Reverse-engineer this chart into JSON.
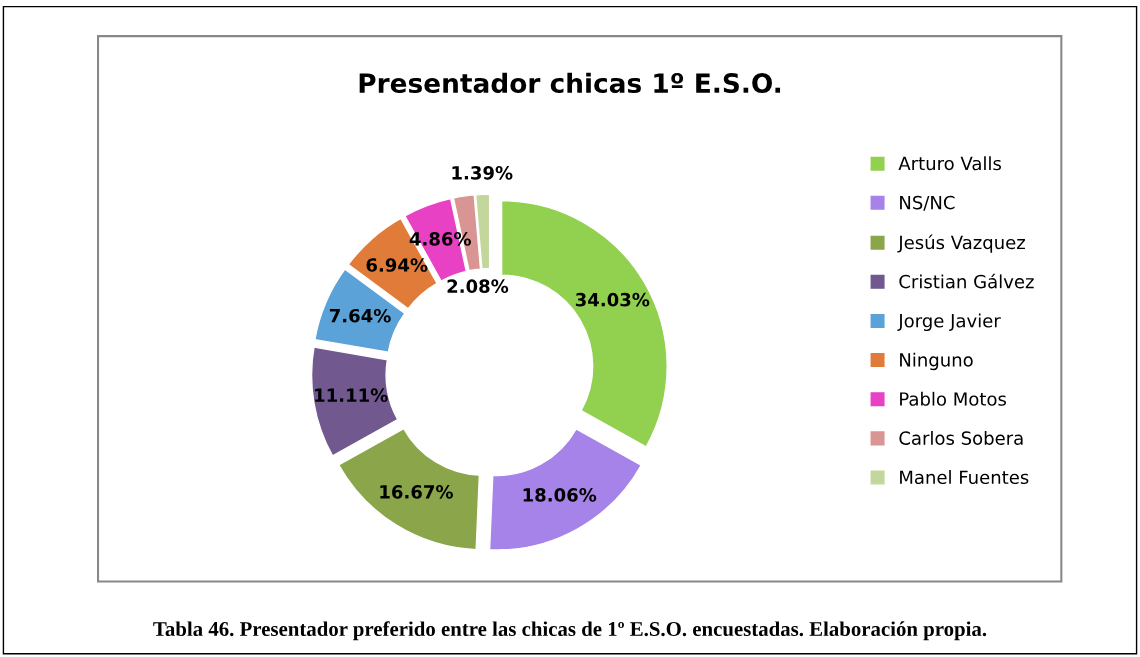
{
  "chart_data": {
    "type": "donut",
    "title": "Presentador chicas 1º E.S.O.",
    "categories": [
      "Arturo Valls",
      "NS/NC",
      "Jesús Vazquez",
      "Cristian Gálvez",
      "Jorge Javier",
      "Ninguno",
      "Pablo Motos",
      "Carlos Sobera",
      "Manel Fuentes"
    ],
    "values": [
      34.03,
      18.06,
      16.67,
      11.11,
      7.64,
      6.94,
      4.86,
      2.08,
      1.39
    ],
    "value_labels": [
      "34.03%",
      "18.06%",
      "16.67%",
      "11.11%",
      "7.64%",
      "6.94%",
      "4.86%",
      "2.08%",
      "1.39%"
    ],
    "colors": [
      "#92d050",
      "#a683e8",
      "#8aa54a",
      "#71588f",
      "#5aa2d8",
      "#e07b39",
      "#e841c4",
      "#d99594",
      "#c3d69b"
    ],
    "legend": "right",
    "annotations": [
      "Tabla 46. Presentador preferido entre las chicas de 1º E.S.O. encuestadas. Elaboración propia."
    ]
  }
}
